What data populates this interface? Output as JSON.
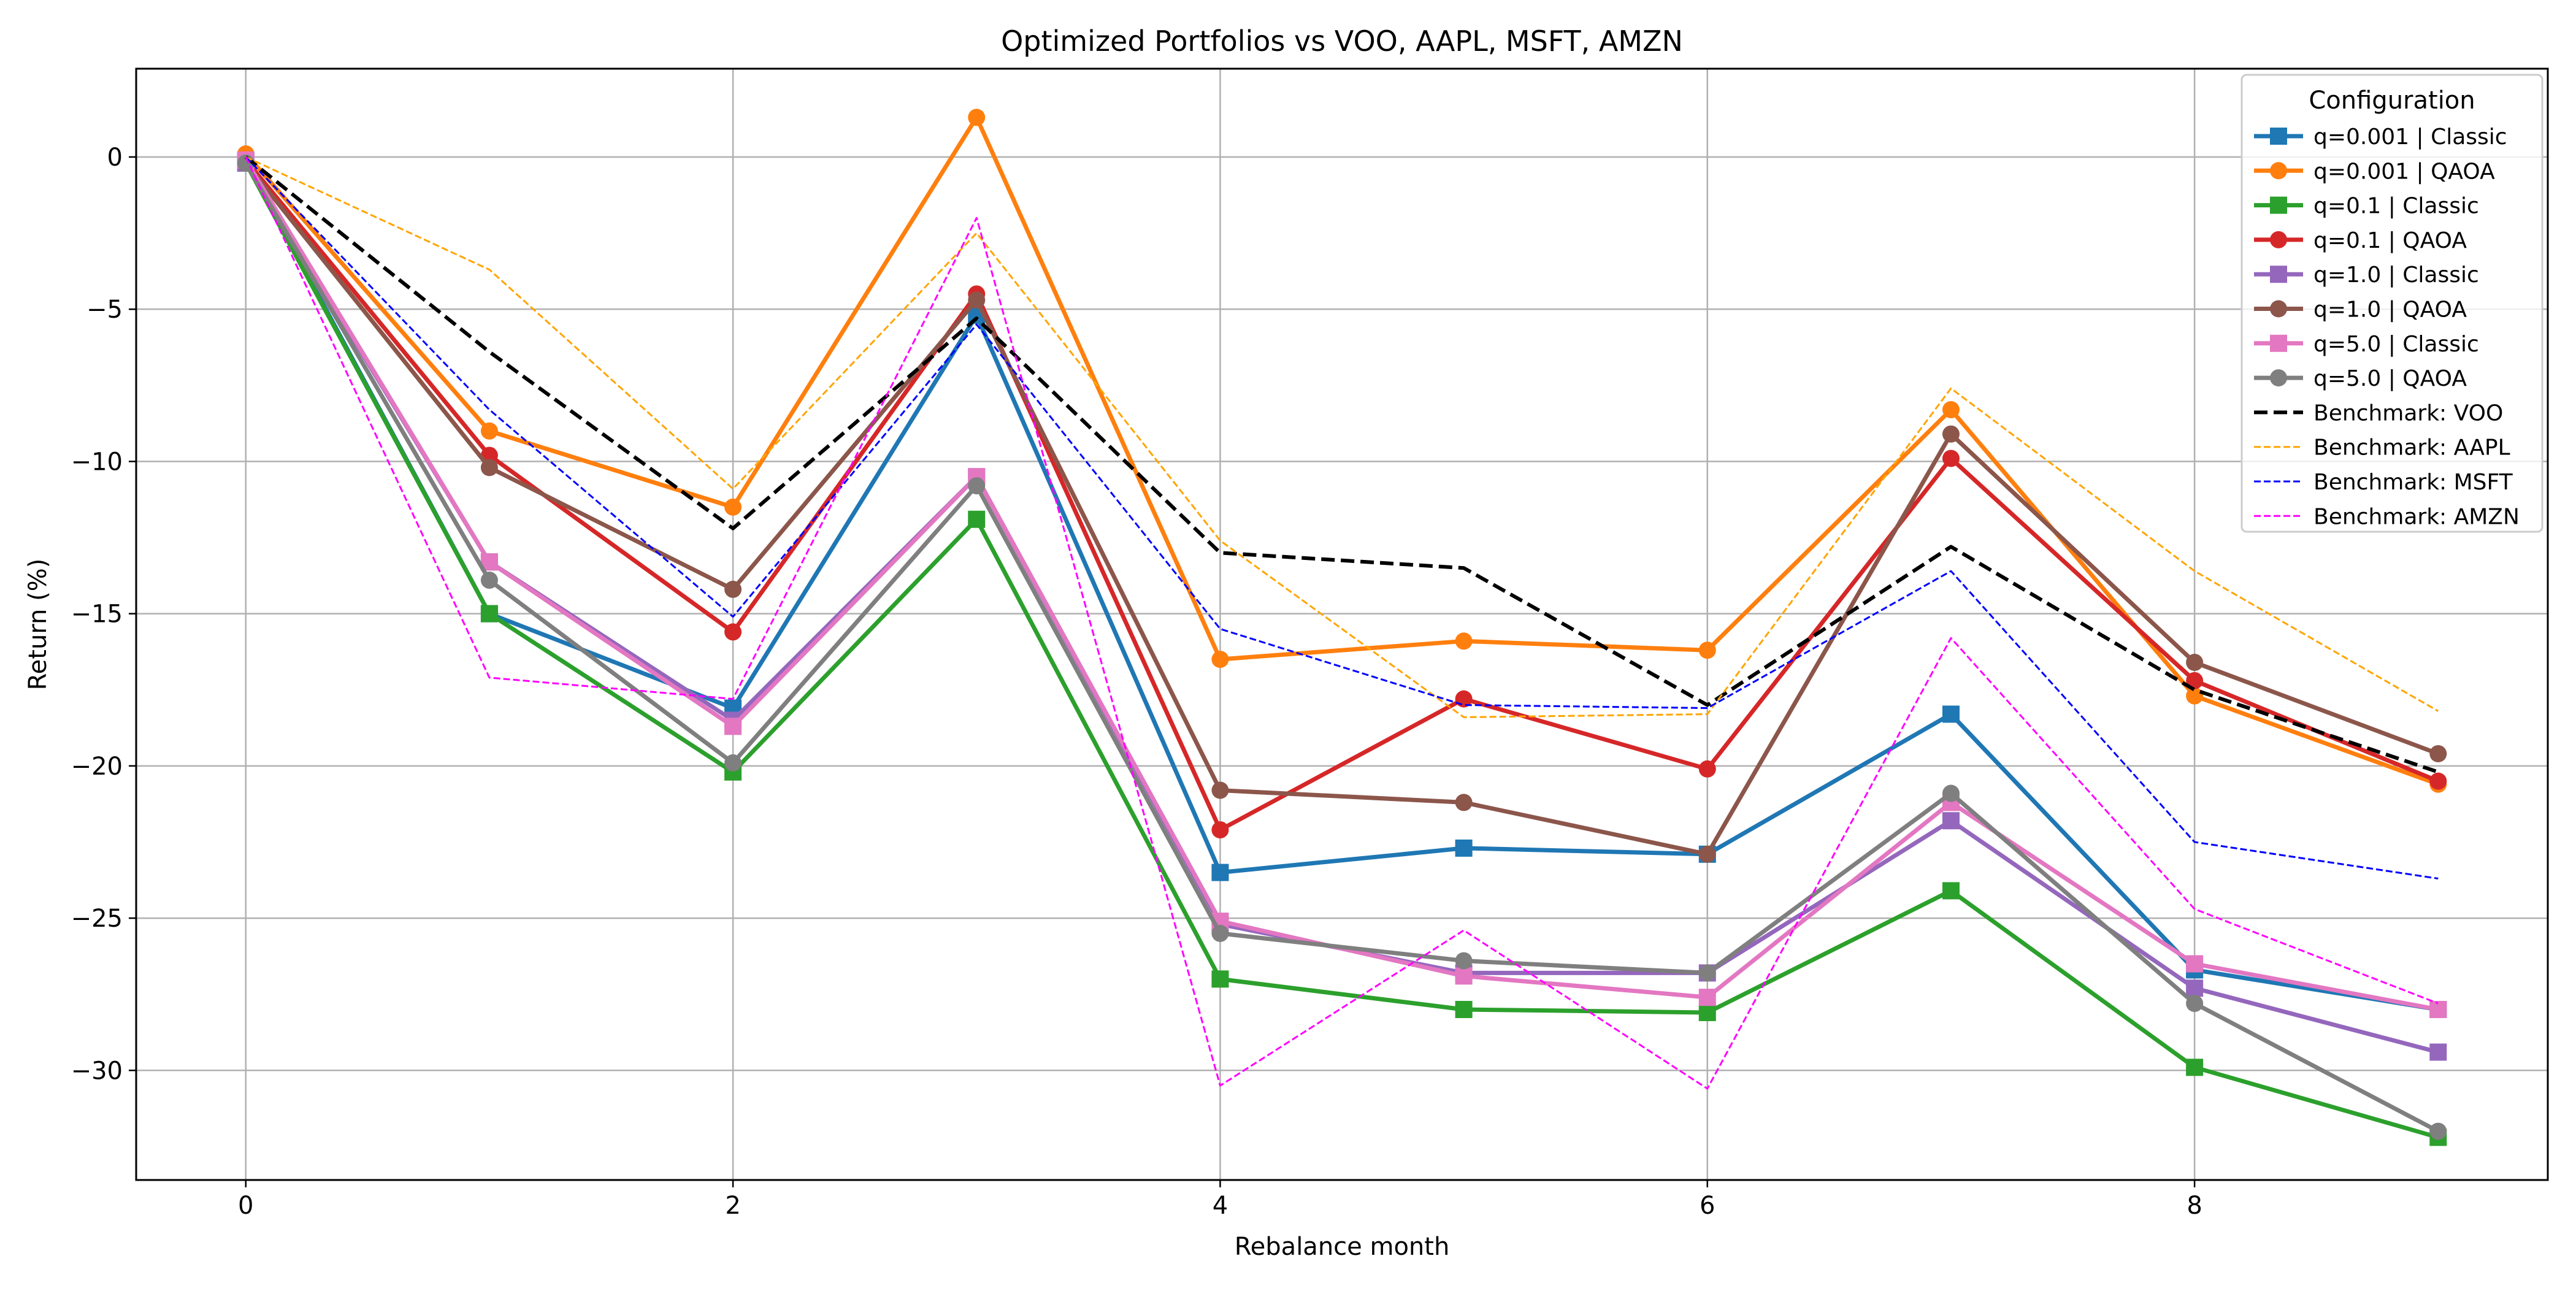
{
  "chart_data": {
    "type": "line",
    "title": "Optimized Portfolios vs VOO, AAPL, MSFT, AMZN",
    "xlabel": "Rebalance month",
    "ylabel": "Return (%)",
    "xlim": [
      -0.45,
      9.45
    ],
    "ylim": [
      -33.6,
      2.9
    ],
    "x_ticks": [
      0,
      2,
      4,
      6,
      8
    ],
    "x_tick_labels": [
      "0",
      "2",
      "4",
      "6",
      "8"
    ],
    "y_ticks": [
      0,
      -5,
      -10,
      -15,
      -20,
      -25,
      -30
    ],
    "y_tick_labels": [
      "0",
      "−5",
      "−10",
      "−15",
      "−20",
      "−25",
      "−30"
    ],
    "grid": true,
    "legend": {
      "title": "Configuration",
      "placement": "top-right"
    },
    "x": [
      0,
      1,
      2,
      3,
      4,
      5,
      6,
      7,
      8,
      9
    ],
    "series": [
      {
        "name": "q=0.001 | Classic",
        "color": "#1f77b4",
        "style": "solid",
        "marker": "square",
        "values": [
          -0.1,
          -15.0,
          -18.1,
          -5.2,
          -23.5,
          -22.7,
          -22.9,
          -18.3,
          -26.7,
          -28.0
        ]
      },
      {
        "name": "q=0.001 | QAOA",
        "color": "#ff7f0e",
        "style": "solid",
        "marker": "circle",
        "values": [
          0.1,
          -9.0,
          -11.5,
          1.3,
          -16.5,
          -15.9,
          -16.2,
          -8.3,
          -17.7,
          -20.6
        ]
      },
      {
        "name": "q=0.1 | Classic",
        "color": "#2ca02c",
        "style": "solid",
        "marker": "square",
        "values": [
          -0.2,
          -15.0,
          -20.2,
          -11.9,
          -27.0,
          -28.0,
          -28.1,
          -24.1,
          -29.9,
          -32.2
        ]
      },
      {
        "name": "q=0.1 | QAOA",
        "color": "#d62728",
        "style": "solid",
        "marker": "circle",
        "values": [
          -0.1,
          -9.8,
          -15.6,
          -4.5,
          -22.1,
          -17.8,
          -20.1,
          -9.9,
          -17.2,
          -20.5
        ]
      },
      {
        "name": "q=1.0 | Classic",
        "color": "#9467bd",
        "style": "solid",
        "marker": "square",
        "values": [
          -0.2,
          -13.3,
          -18.5,
          -10.5,
          -25.2,
          -26.8,
          -26.8,
          -21.8,
          -27.3,
          -29.4
        ]
      },
      {
        "name": "q=1.0 | QAOA",
        "color": "#8c564b",
        "style": "solid",
        "marker": "circle",
        "values": [
          -0.2,
          -10.2,
          -14.2,
          -4.7,
          -20.8,
          -21.2,
          -22.9,
          -9.1,
          -16.6,
          -19.6
        ]
      },
      {
        "name": "q=5.0 | Classic",
        "color": "#e377c2",
        "style": "solid",
        "marker": "square",
        "values": [
          -0.1,
          -13.3,
          -18.7,
          -10.5,
          -25.1,
          -26.9,
          -27.6,
          -21.2,
          -26.5,
          -28.0
        ]
      },
      {
        "name": "q=5.0 | QAOA",
        "color": "#7f7f7f",
        "style": "solid",
        "marker": "circle",
        "values": [
          -0.2,
          -13.9,
          -19.9,
          -10.8,
          -25.5,
          -26.4,
          -26.8,
          -20.9,
          -27.8,
          -32.0
        ]
      },
      {
        "name": "Benchmark: VOO",
        "color": "#000000",
        "style": "dashed-thick",
        "marker": "none",
        "values": [
          0.0,
          -6.4,
          -12.2,
          -5.3,
          -13.0,
          -13.5,
          -18.0,
          -12.8,
          -17.5,
          -20.2
        ]
      },
      {
        "name": "Benchmark: AAPL",
        "color": "#ffa500",
        "style": "dashed-thin",
        "marker": "none",
        "values": [
          0.0,
          -3.7,
          -10.9,
          -2.5,
          -12.6,
          -18.4,
          -18.3,
          -7.6,
          -13.6,
          -18.2
        ]
      },
      {
        "name": "Benchmark: MSFT",
        "color": "#0000ff",
        "style": "dashed-thin",
        "marker": "none",
        "values": [
          0.0,
          -8.3,
          -15.1,
          -5.5,
          -15.5,
          -18.0,
          -18.1,
          -13.6,
          -22.5,
          -23.7
        ]
      },
      {
        "name": "Benchmark: AMZN",
        "color": "#ff00ff",
        "style": "dashed-thin",
        "marker": "none",
        "values": [
          0.0,
          -17.1,
          -17.8,
          -2.0,
          -30.5,
          -25.4,
          -30.6,
          -15.8,
          -24.7,
          -27.8
        ]
      }
    ]
  }
}
